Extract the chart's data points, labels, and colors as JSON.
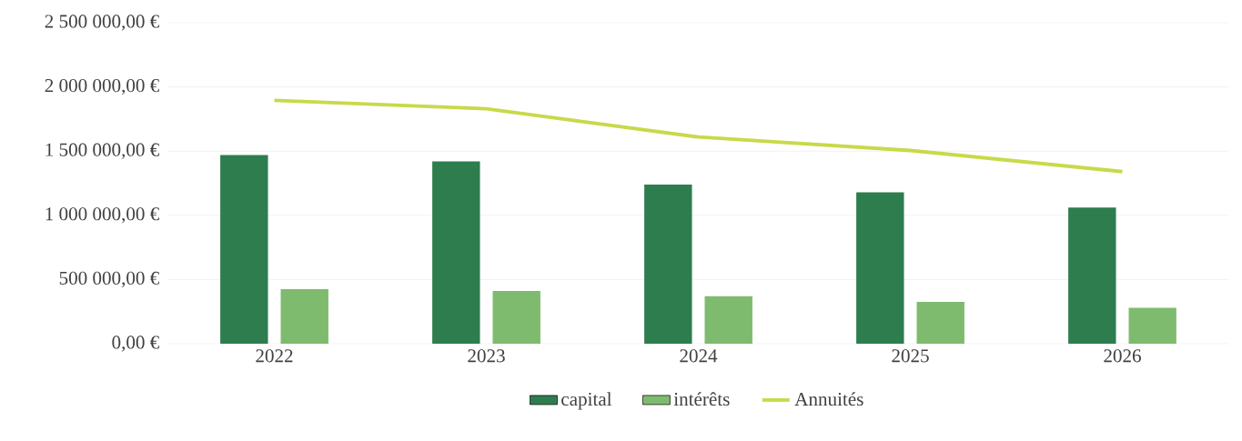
{
  "chart_data": {
    "type": "bar",
    "categories": [
      "2022",
      "2023",
      "2024",
      "2025",
      "2026"
    ],
    "series": [
      {
        "name": "capital",
        "color": "#2e7d4e",
        "values": [
          1470000,
          1420000,
          1240000,
          1180000,
          1060000
        ]
      },
      {
        "name": "intérêts",
        "color": "#7fbb6e",
        "values": [
          425000,
          410000,
          370000,
          325000,
          280000
        ]
      },
      {
        "name": "Annuités",
        "type": "line",
        "color": "#c8d94a",
        "values": [
          1895000,
          1830000,
          1610000,
          1505000,
          1340000
        ]
      }
    ],
    "ylim": [
      0,
      2500000
    ],
    "yticks": [
      {
        "value": 0,
        "label": "0,00 €"
      },
      {
        "value": 500000,
        "label": "500 000,00 €"
      },
      {
        "value": 1000000,
        "label": "1 000 000,00 €"
      },
      {
        "value": 1500000,
        "label": "1 500 000,00 €"
      },
      {
        "value": 2000000,
        "label": "2 000 000,00 €"
      },
      {
        "value": 2500000,
        "label": "2 500 000,00 €"
      }
    ],
    "grid": "y",
    "legend": "bottom"
  }
}
